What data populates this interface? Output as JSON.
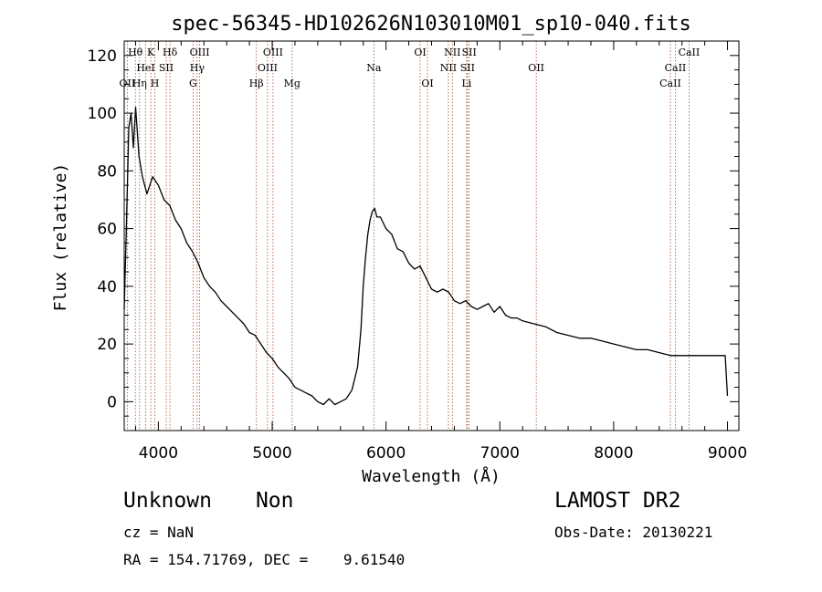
{
  "chart_data": {
    "type": "line",
    "title": "spec-56345-HD102626N103010M01_sp10-040.fits",
    "xlabel": "Wavelength (Å)",
    "ylabel": "Flux (relative)",
    "xlim": [
      3700,
      9100
    ],
    "ylim": [
      -10,
      125
    ],
    "xticks": [
      4000,
      5000,
      6000,
      7000,
      8000,
      9000
    ],
    "yticks": [
      0,
      20,
      40,
      60,
      80,
      100,
      120
    ],
    "grid": false,
    "line_color": "#000000",
    "marker_line_color": "#a0522d",
    "series": [
      {
        "x": [
          3700,
          3720,
          3740,
          3760,
          3780,
          3800,
          3830,
          3860,
          3900,
          3950,
          4000,
          4050,
          4100,
          4150,
          4200,
          4250,
          4300,
          4350,
          4400,
          4450,
          4500,
          4550,
          4600,
          4650,
          4700,
          4750,
          4800,
          4850,
          4900,
          4950,
          5000,
          5050,
          5100,
          5150,
          5200,
          5250,
          5300,
          5350,
          5400,
          5450,
          5500,
          5550,
          5600,
          5650,
          5700,
          5750,
          5780,
          5800,
          5820,
          5840,
          5860,
          5880,
          5900,
          5920,
          5950,
          6000,
          6050,
          6100,
          6150,
          6200,
          6250,
          6300,
          6350,
          6400,
          6450,
          6500,
          6550,
          6600,
          6650,
          6700,
          6750,
          6800,
          6850,
          6900,
          6950,
          7000,
          7050,
          7100,
          7150,
          7200,
          7300,
          7400,
          7500,
          7600,
          7700,
          7800,
          7900,
          8000,
          8100,
          8200,
          8300,
          8400,
          8500,
          8600,
          8700,
          8800,
          8900,
          8950,
          8980,
          9000
        ],
        "y": [
          32,
          62,
          95,
          100,
          88,
          102,
          85,
          78,
          72,
          78,
          75,
          70,
          68,
          63,
          60,
          55,
          52,
          48,
          43,
          40,
          38,
          35,
          33,
          31,
          29,
          27,
          24,
          23,
          20,
          17,
          15,
          12,
          10,
          8,
          5,
          4,
          3,
          2,
          0,
          -1,
          1,
          -1,
          0,
          1,
          4,
          12,
          25,
          40,
          50,
          58,
          63,
          66,
          67,
          64,
          64,
          60,
          58,
          53,
          52,
          48,
          46,
          47,
          43,
          39,
          38,
          39,
          38,
          35,
          34,
          35,
          33,
          32,
          33,
          34,
          31,
          33,
          30,
          29,
          29,
          28,
          27,
          26,
          24,
          23,
          22,
          22,
          21,
          20,
          19,
          18,
          18,
          17,
          16,
          16,
          16,
          16,
          16,
          16,
          16,
          2
        ]
      }
    ],
    "line_markers": [
      {
        "label": "HeI",
        "x": 3889,
        "row": 2
      },
      {
        "label": "K",
        "x": 3934,
        "row": 1
      },
      {
        "label": "SII",
        "x": 4069,
        "row": 2
      },
      {
        "label": "H",
        "x": 3969,
        "row": 3
      },
      {
        "label": "Hδ",
        "x": 4102,
        "row": 1
      },
      {
        "label": "OIII",
        "x": 4363,
        "row": 1
      },
      {
        "label": "Hγ",
        "x": 4341,
        "row": 2
      },
      {
        "label": "G",
        "x": 4305,
        "row": 3
      },
      {
        "label": "OIII",
        "x": 5007,
        "row": 1
      },
      {
        "label": "OIII",
        "x": 4959,
        "row": 2
      },
      {
        "label": "Hβ",
        "x": 4861,
        "row": 3
      },
      {
        "label": "Mg",
        "x": 5175,
        "row": 3
      },
      {
        "label": "Na",
        "x": 5893,
        "row": 2
      },
      {
        "label": "OI",
        "x": 6300,
        "row": 1
      },
      {
        "label": "OI",
        "x": 6364,
        "row": 3
      },
      {
        "label": "NII",
        "x": 6583,
        "row": 1
      },
      {
        "label": "NII",
        "x": 6548,
        "row": 2
      },
      {
        "label": "SII",
        "x": 6731,
        "row": 1
      },
      {
        "label": "SII",
        "x": 6716,
        "row": 2
      },
      {
        "label": "Li",
        "x": 6708,
        "row": 3
      },
      {
        "label": "OII",
        "x": 7320,
        "row": 2
      },
      {
        "label": "CaII",
        "x": 8662,
        "row": 1
      },
      {
        "label": "CaII",
        "x": 8542,
        "row": 2
      },
      {
        "label": "CaII",
        "x": 8498,
        "row": 3
      },
      {
        "label": "OII",
        "x": 3727,
        "row": 3
      },
      {
        "label": "Hθ",
        "x": 3798,
        "row": 1
      },
      {
        "label": "Hη",
        "x": 3835,
        "row": 3
      }
    ]
  },
  "info": {
    "class": "Unknown",
    "subclass": "Non",
    "survey": "LAMOST DR2",
    "cz": "cz = NaN",
    "obs_date": "Obs-Date: 20130221",
    "radec": "RA = 154.71769, DEC =    9.61540"
  }
}
